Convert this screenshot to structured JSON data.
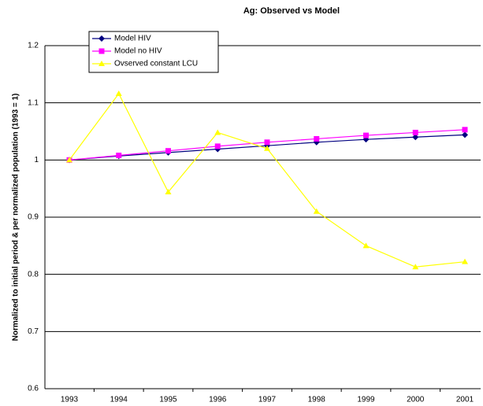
{
  "chart_data": {
    "type": "line",
    "title": "Ag: Observed vs Model",
    "y_label": "Normalized to initial period & per normalized population (1993 = 1)",
    "categories": [
      "1993",
      "1994",
      "1995",
      "1996",
      "1997",
      "1998",
      "1999",
      "2000",
      "2001"
    ],
    "series": [
      {
        "name": "Model HIV",
        "color": "#000080",
        "marker": "diamond",
        "values": [
          1.0,
          1.007,
          1.013,
          1.019,
          1.025,
          1.031,
          1.036,
          1.04,
          1.044
        ]
      },
      {
        "name": "Model no HIV",
        "color": "#ff00ff",
        "marker": "square",
        "values": [
          1.0,
          1.008,
          1.016,
          1.024,
          1.031,
          1.037,
          1.043,
          1.048,
          1.053
        ]
      },
      {
        "name": "Ovserved constant LCU",
        "color": "#ffff00",
        "marker": "triangle",
        "values": [
          1.0,
          1.116,
          0.944,
          1.048,
          1.02,
          0.91,
          0.85,
          0.813,
          0.822
        ]
      }
    ],
    "ylim": [
      0.6,
      1.2
    ],
    "yticks": [
      0.6,
      0.7,
      0.8,
      0.9,
      1,
      1.1,
      1.2
    ],
    "grid": true,
    "legend": "top-left"
  }
}
